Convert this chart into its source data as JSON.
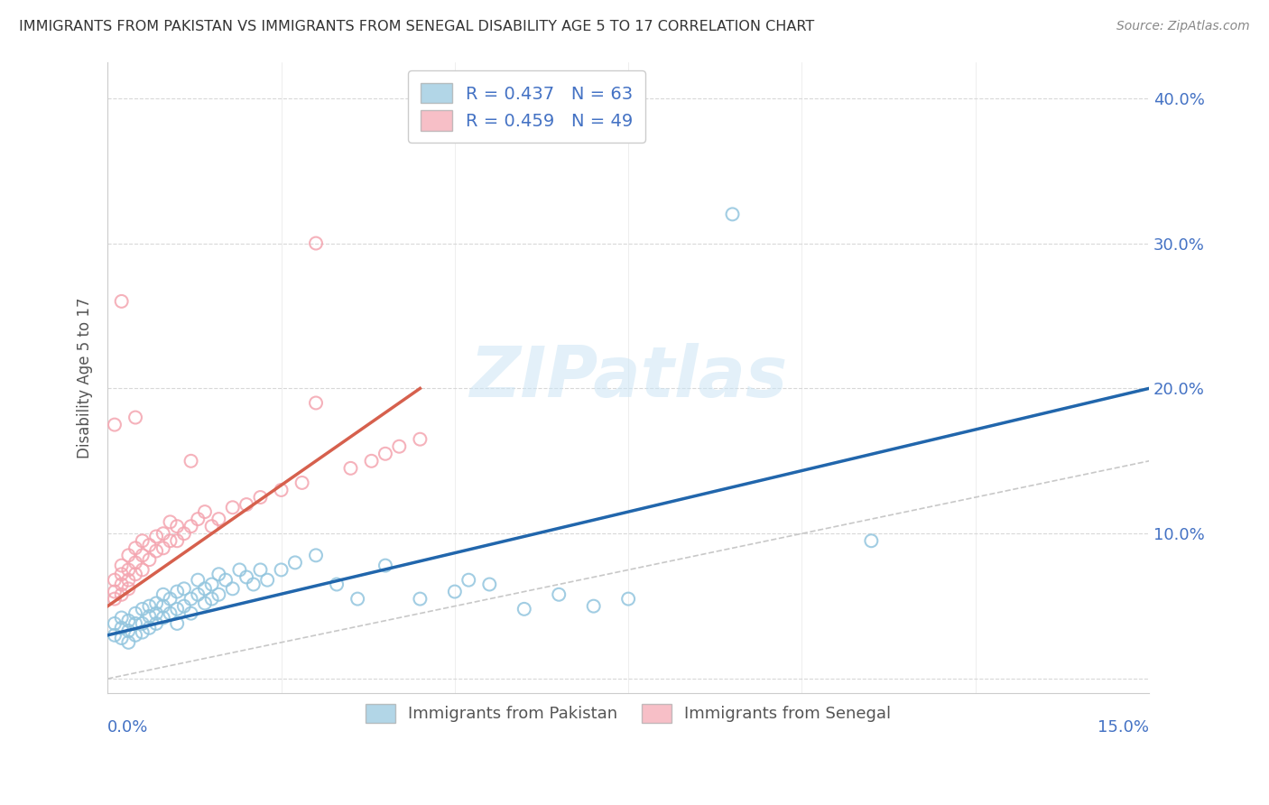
{
  "title": "IMMIGRANTS FROM PAKISTAN VS IMMIGRANTS FROM SENEGAL DISABILITY AGE 5 TO 17 CORRELATION CHART",
  "source": "Source: ZipAtlas.com",
  "ylabel": "Disability Age 5 to 17",
  "ytick_vals": [
    0.0,
    0.1,
    0.2,
    0.3,
    0.4
  ],
  "ytick_labels": [
    "",
    "10.0%",
    "20.0%",
    "30.0%",
    "40.0%"
  ],
  "xlim": [
    0.0,
    0.15
  ],
  "ylim": [
    -0.01,
    0.425
  ],
  "pakistan_color": "#92c5de",
  "senegal_color": "#f4a5b0",
  "pakistan_line_color": "#2166ac",
  "senegal_line_color": "#d6604d",
  "diagonal_color": "#c8c8c8",
  "watermark": "ZIPatlas",
  "legend_pak_label": "R = 0.437   N = 63",
  "legend_sen_label": "R = 0.459   N = 49",
  "bottom_legend_pak": "Immigrants from Pakistan",
  "bottom_legend_sen": "Immigrants from Senegal",
  "pakistan_scatter_x": [
    0.001,
    0.001,
    0.002,
    0.002,
    0.002,
    0.003,
    0.003,
    0.003,
    0.004,
    0.004,
    0.004,
    0.005,
    0.005,
    0.005,
    0.006,
    0.006,
    0.006,
    0.007,
    0.007,
    0.007,
    0.008,
    0.008,
    0.008,
    0.009,
    0.009,
    0.01,
    0.01,
    0.01,
    0.011,
    0.011,
    0.012,
    0.012,
    0.013,
    0.013,
    0.014,
    0.014,
    0.015,
    0.015,
    0.016,
    0.016,
    0.017,
    0.018,
    0.019,
    0.02,
    0.021,
    0.022,
    0.023,
    0.025,
    0.027,
    0.03,
    0.033,
    0.036,
    0.04,
    0.045,
    0.05,
    0.055,
    0.06,
    0.065,
    0.07,
    0.075,
    0.052,
    0.11,
    0.09
  ],
  "pakistan_scatter_y": [
    0.03,
    0.038,
    0.035,
    0.028,
    0.042,
    0.033,
    0.025,
    0.04,
    0.03,
    0.038,
    0.045,
    0.032,
    0.038,
    0.048,
    0.035,
    0.043,
    0.05,
    0.038,
    0.045,
    0.052,
    0.042,
    0.05,
    0.058,
    0.045,
    0.055,
    0.048,
    0.06,
    0.038,
    0.05,
    0.062,
    0.055,
    0.045,
    0.058,
    0.068,
    0.052,
    0.062,
    0.055,
    0.065,
    0.058,
    0.072,
    0.068,
    0.062,
    0.075,
    0.07,
    0.065,
    0.075,
    0.068,
    0.075,
    0.08,
    0.085,
    0.065,
    0.055,
    0.078,
    0.055,
    0.06,
    0.065,
    0.048,
    0.058,
    0.05,
    0.055,
    0.068,
    0.095,
    0.32
  ],
  "senegal_scatter_x": [
    0.001,
    0.001,
    0.001,
    0.002,
    0.002,
    0.002,
    0.002,
    0.003,
    0.003,
    0.003,
    0.003,
    0.004,
    0.004,
    0.004,
    0.005,
    0.005,
    0.005,
    0.006,
    0.006,
    0.007,
    0.007,
    0.008,
    0.008,
    0.009,
    0.009,
    0.01,
    0.01,
    0.011,
    0.012,
    0.013,
    0.014,
    0.015,
    0.016,
    0.018,
    0.02,
    0.022,
    0.025,
    0.028,
    0.03,
    0.035,
    0.038,
    0.04,
    0.042,
    0.045,
    0.002,
    0.012,
    0.03,
    0.001,
    0.004
  ],
  "senegal_scatter_y": [
    0.06,
    0.068,
    0.055,
    0.065,
    0.072,
    0.058,
    0.078,
    0.068,
    0.075,
    0.062,
    0.085,
    0.072,
    0.08,
    0.09,
    0.075,
    0.085,
    0.095,
    0.082,
    0.092,
    0.088,
    0.098,
    0.09,
    0.1,
    0.095,
    0.108,
    0.095,
    0.105,
    0.1,
    0.105,
    0.11,
    0.115,
    0.105,
    0.11,
    0.118,
    0.12,
    0.125,
    0.13,
    0.135,
    0.19,
    0.145,
    0.15,
    0.155,
    0.16,
    0.165,
    0.26,
    0.15,
    0.3,
    0.175,
    0.18
  ]
}
